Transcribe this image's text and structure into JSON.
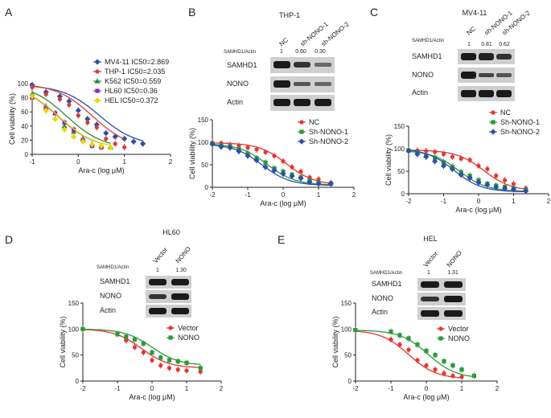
{
  "panels": {
    "A": {
      "letter": "A"
    },
    "B": {
      "letter": "B",
      "cell_line": "THP-1",
      "ratio_label": "SAMHD1/Actin",
      "lanes": [
        "NC",
        "sh-NONO-1",
        "sh-NONO-2"
      ],
      "ratios": [
        "1",
        "0.60",
        "0.30"
      ],
      "blots": [
        "SAMHD1",
        "NONO",
        "Actin"
      ]
    },
    "C": {
      "letter": "C",
      "cell_line": "MV4-11",
      "ratio_label": "SAMHD1/Actin",
      "lanes": [
        "NC",
        "sh-NONO-1",
        "sh-NONO-2"
      ],
      "ratios": [
        "1",
        "0.81",
        "0.62"
      ],
      "blots": [
        "SAMHD1",
        "NONO",
        "Actin"
      ]
    },
    "D": {
      "letter": "D",
      "cell_line": "HL60",
      "ratio_label": "SAMHD1/Actin",
      "lanes": [
        "Vector",
        "NONO"
      ],
      "ratios": [
        "1",
        "1.30"
      ],
      "blots": [
        "SAMHD1",
        "NONO",
        "Actin"
      ]
    },
    "E": {
      "letter": "E",
      "cell_line": "HEL",
      "ratio_label": "SAMHD1/Actin",
      "lanes": [
        "Vector",
        "NONO"
      ],
      "ratios": [
        "1",
        "1.31"
      ],
      "blots": [
        "SAMHD1",
        "NONO",
        "Actin"
      ]
    }
  },
  "chart_data": [
    {
      "id": "A",
      "type": "scatter",
      "xlabel": "Ara-c (log μM)",
      "ylabel": "Cell viability (%)",
      "xlim": [
        -1,
        2
      ],
      "ylim": [
        0,
        100
      ],
      "xticks": [
        -1,
        0,
        1,
        2
      ],
      "yticks": [
        0,
        20,
        40,
        60,
        80,
        100
      ],
      "series": [
        {
          "name": "MV4-11 IC50=2.869",
          "color": "#2b4ea8",
          "marker": "diamond",
          "ic50_log": 0.457,
          "bottom": 12,
          "x": [
            -1,
            -0.7,
            -0.4,
            -0.2,
            0,
            0.2,
            0.4,
            0.6,
            0.8,
            1.0,
            1.2,
            1.4
          ],
          "y": [
            98,
            88,
            82,
            75,
            62,
            50,
            42,
            30,
            25,
            22,
            18,
            15
          ]
        },
        {
          "name": "THP-1 IC50=2.035",
          "color": "#d93a3a",
          "marker": "circle",
          "ic50_log": 0.309,
          "bottom": 8,
          "x": [
            -1,
            -0.7,
            -0.4,
            -0.2,
            0,
            0.2,
            0.4,
            0.6,
            0.8,
            1.0
          ],
          "y": [
            95,
            85,
            78,
            70,
            55,
            45,
            38,
            22,
            15,
            10
          ]
        },
        {
          "name": "K562 IC50=0.559",
          "color": "#2c8a3c",
          "marker": "triangle",
          "ic50_log": -0.253,
          "bottom": 8,
          "x": [
            -1,
            -0.7,
            -0.5,
            -0.3,
            -0.1,
            0.1,
            0.3,
            0.5,
            0.7
          ],
          "y": [
            85,
            68,
            58,
            40,
            32,
            22,
            15,
            12,
            10
          ]
        },
        {
          "name": "HL60 IC50=0.36",
          "color": "#8a2fb0",
          "marker": "square",
          "ic50_log": -0.444,
          "bottom": 8,
          "x": [
            -1,
            -0.7,
            -0.5,
            -0.3,
            -0.1,
            0.1,
            0.3,
            0.5
          ],
          "y": [
            80,
            66,
            58,
            45,
            35,
            20,
            12,
            10
          ]
        },
        {
          "name": "HEL IC50=0.372",
          "color": "#e8d800",
          "marker": "diamond",
          "ic50_log": -0.429,
          "bottom": 8,
          "x": [
            -1,
            -0.7,
            -0.5,
            -0.3,
            -0.1,
            0.1,
            0.3,
            0.5,
            0.7
          ],
          "y": [
            82,
            62,
            50,
            35,
            25,
            18,
            14,
            12,
            10
          ]
        }
      ]
    },
    {
      "id": "B",
      "type": "scatter",
      "xlabel": "Ara-c (log μM)",
      "ylabel": "Cell viability (%)",
      "xlim": [
        -2,
        2
      ],
      "ylim": [
        0,
        150
      ],
      "xticks": [
        -2,
        -1,
        0,
        1,
        2
      ],
      "yticks": [
        0,
        50,
        100,
        150
      ],
      "series": [
        {
          "name": "NC",
          "color": "#e8342f",
          "marker": "circle",
          "ic50_log": 0.1,
          "bottom": 5,
          "x": [
            -2,
            -1.75,
            -1.5,
            -1.25,
            -1,
            -0.75,
            -0.5,
            -0.25,
            0,
            0.25,
            0.5,
            0.75,
            1,
            1.35
          ],
          "y": [
            99,
            98,
            95,
            93,
            88,
            84,
            78,
            70,
            58,
            45,
            35,
            22,
            18,
            10
          ]
        },
        {
          "name": "Sh-NONO-1",
          "color": "#2a9a3c",
          "marker": "square",
          "ic50_log": -0.45,
          "bottom": 5,
          "x": [
            -2,
            -1.75,
            -1.5,
            -1.25,
            -1,
            -0.75,
            -0.5,
            -0.25,
            0,
            0.25,
            0.5,
            0.75,
            1,
            1.35
          ],
          "y": [
            97,
            93,
            90,
            85,
            75,
            65,
            55,
            42,
            35,
            28,
            22,
            15,
            10,
            8
          ]
        },
        {
          "name": "Sh-NONO-2",
          "color": "#2b4ea8",
          "marker": "diamond",
          "ic50_log": -0.6,
          "bottom": 4,
          "x": [
            -2,
            -1.75,
            -1.5,
            -1.25,
            -1,
            -0.75,
            -0.5,
            -0.25,
            0,
            0.25,
            0.5,
            0.75,
            1,
            1.35
          ],
          "y": [
            96,
            90,
            88,
            80,
            70,
            60,
            45,
            38,
            30,
            25,
            20,
            12,
            8,
            8
          ]
        }
      ]
    },
    {
      "id": "C",
      "type": "scatter",
      "xlabel": "Ara-c (log μM)",
      "ylabel": "Cell viability (%)",
      "xlim": [
        -2,
        2
      ],
      "ylim": [
        0,
        150
      ],
      "xticks": [
        -2,
        -1,
        0,
        1,
        2
      ],
      "yticks": [
        0,
        50,
        100,
        150
      ],
      "series": [
        {
          "name": "NC",
          "color": "#e8342f",
          "marker": "circle",
          "ic50_log": 0.15,
          "bottom": 6,
          "x": [
            -2,
            -1.75,
            -1.5,
            -1.25,
            -1,
            -0.75,
            -0.5,
            -0.25,
            0,
            0.25,
            0.5,
            0.75,
            1,
            1.35
          ],
          "y": [
            97,
            96,
            95,
            93,
            88,
            82,
            78,
            75,
            62,
            55,
            40,
            30,
            22,
            12
          ]
        },
        {
          "name": "Sh-NONO-1",
          "color": "#2a9a3c",
          "marker": "square",
          "ic50_log": -0.55,
          "bottom": 5,
          "x": [
            -2,
            -1.75,
            -1.5,
            -1.25,
            -1,
            -0.75,
            -0.5,
            -0.25,
            0,
            0.25,
            0.5,
            0.75,
            1,
            1.35
          ],
          "y": [
            96,
            92,
            85,
            80,
            70,
            60,
            48,
            40,
            30,
            22,
            18,
            15,
            12,
            8
          ]
        },
        {
          "name": "Sh-NONO-2",
          "color": "#2b4ea8",
          "marker": "diamond",
          "ic50_log": -0.7,
          "bottom": 4,
          "x": [
            -2,
            -1.75,
            -1.5,
            -1.25,
            -1,
            -0.75,
            -0.5,
            -0.25,
            0,
            0.25,
            0.5,
            0.75,
            1,
            1.35
          ],
          "y": [
            95,
            88,
            82,
            72,
            62,
            55,
            42,
            35,
            25,
            20,
            15,
            12,
            10,
            6
          ]
        }
      ]
    },
    {
      "id": "D",
      "type": "scatter",
      "xlabel": "Ara-c (log μM)",
      "ylabel": "Cell viability (%)",
      "xlim": [
        -2,
        2
      ],
      "ylim": [
        0,
        150
      ],
      "xticks": [
        -2,
        -1,
        0,
        1,
        2
      ],
      "yticks": [
        0,
        50,
        100,
        150
      ],
      "series": [
        {
          "name": "Vector",
          "color": "#e8342f",
          "marker": "circle",
          "ic50_log": -0.3,
          "bottom": 25,
          "x": [
            -2,
            -0.75,
            -0.5,
            -0.25,
            0,
            0.25,
            0.5,
            0.75,
            1,
            1.4
          ],
          "y": [
            100,
            78,
            65,
            55,
            40,
            30,
            25,
            22,
            20,
            18
          ]
        },
        {
          "name": "NONO",
          "color": "#2a9a3c",
          "marker": "square",
          "ic50_log": 0.0,
          "bottom": 30,
          "x": [
            -2,
            -1,
            -0.75,
            -0.5,
            -0.25,
            0,
            0.25,
            0.5,
            0.75,
            1,
            1.4
          ],
          "y": [
            100,
            90,
            85,
            80,
            72,
            55,
            45,
            40,
            38,
            35,
            25
          ]
        }
      ]
    },
    {
      "id": "E",
      "type": "scatter",
      "xlabel": "Ara-c (log μM)",
      "ylabel": "Cell viability (%)",
      "xlim": [
        -2,
        2
      ],
      "ylim": [
        0,
        150
      ],
      "xticks": [
        -2,
        -1,
        0,
        1,
        2
      ],
      "yticks": [
        0,
        50,
        100,
        150
      ],
      "series": [
        {
          "name": "Vector",
          "color": "#e8342f",
          "marker": "circle",
          "ic50_log": -0.5,
          "bottom": 4,
          "x": [
            -2,
            -1,
            -0.75,
            -0.5,
            -0.25,
            0,
            0.25,
            0.5,
            0.75,
            1
          ],
          "y": [
            98,
            80,
            70,
            60,
            40,
            30,
            22,
            15,
            10,
            8
          ]
        },
        {
          "name": "NONO",
          "color": "#2a9a3c",
          "marker": "square",
          "ic50_log": 0.05,
          "bottom": 5,
          "x": [
            -2,
            -1,
            -0.75,
            -0.5,
            -0.25,
            0,
            0.25,
            0.5,
            0.75,
            1,
            1.35
          ],
          "y": [
            98,
            95,
            88,
            82,
            70,
            58,
            50,
            38,
            30,
            22,
            10
          ]
        }
      ]
    }
  ]
}
